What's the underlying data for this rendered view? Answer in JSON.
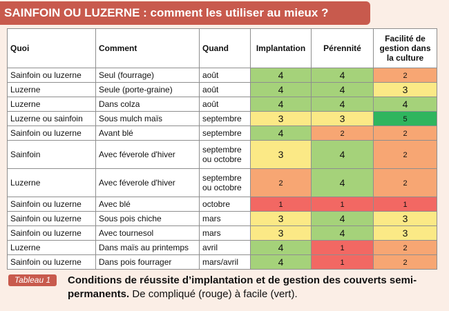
{
  "title": "SAINFOIN OU LUZERNE : comment les utiliser au mieux ?",
  "table": {
    "headers": {
      "quoi": "Quoi",
      "comment": "Comment",
      "quand": "Quand",
      "implantation": "Implantation",
      "perennite": "Pérennité",
      "facilite": "Facilité de gestion dans la culture"
    },
    "rows": [
      {
        "quoi": "Sainfoin ou luzerne",
        "comment": "Seul (fourrage)",
        "quand": "août",
        "implantation": "4",
        "perennite": "4",
        "facilite": "2"
      },
      {
        "quoi": "Luzerne",
        "comment": "Seule (porte-graine)",
        "quand": "août",
        "implantation": "4",
        "perennite": "4",
        "facilite": "3"
      },
      {
        "quoi": "Luzerne",
        "comment": "Dans colza",
        "quand": "août",
        "implantation": "4",
        "perennite": "4",
        "facilite": "4"
      },
      {
        "quoi": "Luzerne ou sainfoin",
        "comment": "Sous mulch maïs",
        "quand": "septembre",
        "implantation": "3",
        "perennite": "3",
        "facilite": "5"
      },
      {
        "quoi": "Sainfoin ou luzerne",
        "comment": "Avant blé",
        "quand": "septembre",
        "implantation": "4",
        "perennite": "2",
        "facilite": "2"
      },
      {
        "quoi": "Sainfoin",
        "comment": "Avec féverole d'hiver",
        "quand": "septembre ou octobre",
        "implantation": "3",
        "perennite": "4",
        "facilite": "2"
      },
      {
        "quoi": "Luzerne",
        "comment": "Avec féverole d'hiver",
        "quand": "septembre ou octobre",
        "implantation": "2",
        "perennite": "4",
        "facilite": "2"
      },
      {
        "quoi": "Sainfoin ou luzerne",
        "comment": "Avec blé",
        "quand": "octobre",
        "implantation": "1",
        "perennite": "1",
        "facilite": "1"
      },
      {
        "quoi": "Sainfoin ou luzerne",
        "comment": "Sous pois chiche",
        "quand": "mars",
        "implantation": "3",
        "perennite": "4",
        "facilite": "3"
      },
      {
        "quoi": "Sainfoin ou luzerne",
        "comment": "Avec tournesol",
        "quand": "mars",
        "implantation": "3",
        "perennite": "4",
        "facilite": "3"
      },
      {
        "quoi": "Luzerne",
        "comment": "Dans maïs au printemps",
        "quand": "avril",
        "implantation": "4",
        "perennite": "1",
        "facilite": "2"
      },
      {
        "quoi": "Sainfoin ou luzerne",
        "comment": "Dans pois fourrager",
        "quand": "mars/avril",
        "implantation": "4",
        "perennite": "1",
        "facilite": "2"
      }
    ]
  },
  "score_colors": {
    "1": "#f26863",
    "2": "#f7a673",
    "3": "#fbe986",
    "4": "#a5d27a",
    "5": "#2fb55e"
  },
  "caption": {
    "tag": "Tableau 1",
    "bold": "Conditions de réussite d’implantation et de gestion des couverts semi-permanents.",
    "normal": " De compliqué (rouge) à facile (vert)."
  }
}
